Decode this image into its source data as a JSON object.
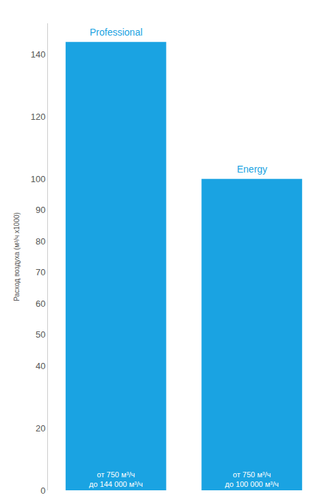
{
  "chart_data": {
    "type": "bar",
    "y_label": "Расход воздуха (м³/ч x1000)",
    "categories": [
      "Professional",
      "Energy"
    ],
    "values": [
      144,
      100
    ],
    "value_labels": [
      "от 750 м³/ч\nдо 144 000 м³/ч",
      "от 750 м³/ч\nдо 100 000 м³/ч"
    ],
    "data_labels": true,
    "color": "#1aa3e2",
    "ylim": [
      0,
      150
    ],
    "yticks": [
      0,
      20,
      40,
      50,
      60,
      70,
      80,
      90,
      100,
      120,
      140
    ],
    "grid": false,
    "tick_labels": "y"
  }
}
